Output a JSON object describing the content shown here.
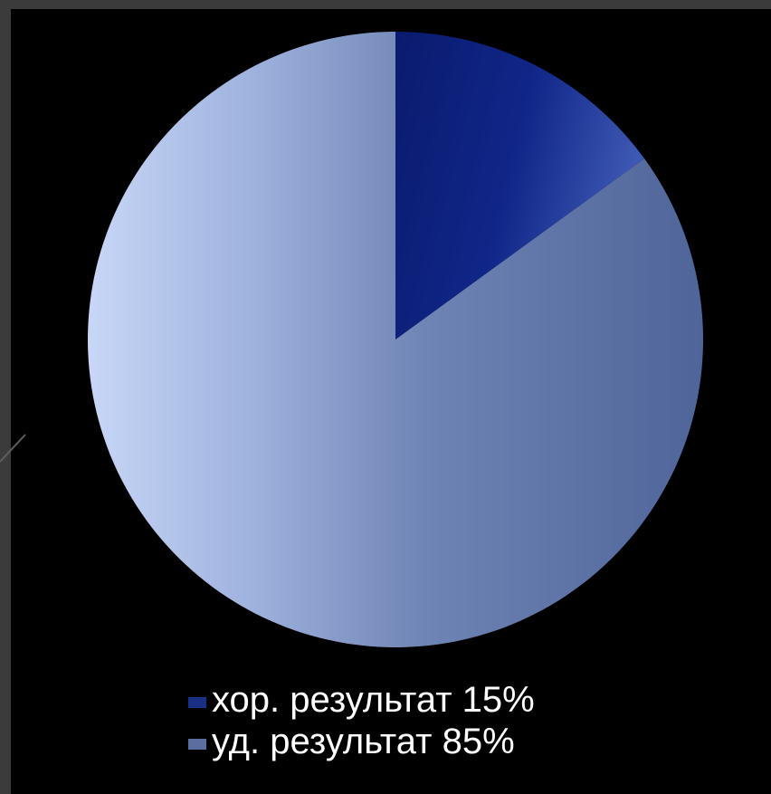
{
  "chart_data": {
    "type": "pie",
    "title": "",
    "categories": [
      "хор. результат 15%",
      "уд. результат 85%"
    ],
    "values": [
      15,
      85
    ],
    "colors": [
      "#1a2f86",
      "#5a6f9f"
    ],
    "legend": {
      "placement": "bottom",
      "entries": [
        "хор. результат 15%",
        "уд. результат 85%"
      ]
    }
  }
}
